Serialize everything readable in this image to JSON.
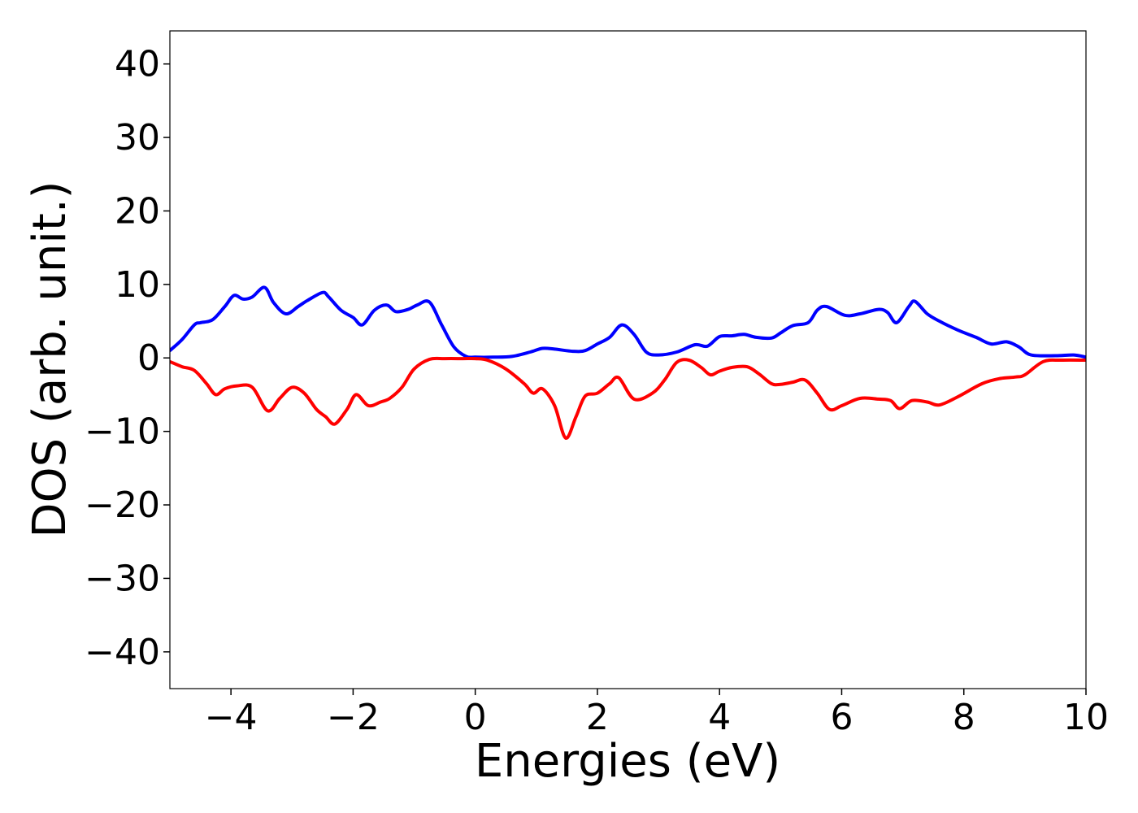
{
  "chart_data": {
    "type": "line",
    "title": "",
    "xlabel": "Energies (eV)",
    "ylabel": "DOS (arb. unit.)",
    "xlim": [
      -5,
      10
    ],
    "ylim": [
      -45,
      44.5
    ],
    "xticks": [
      -4,
      -2,
      0,
      2,
      4,
      6,
      8,
      10
    ],
    "xtick_labels": [
      "−4",
      "−2",
      "0",
      "2",
      "4",
      "6",
      "8",
      "10"
    ],
    "yticks": [
      40,
      30,
      20,
      10,
      0,
      -10,
      -20,
      -30,
      -40
    ],
    "ytick_labels": [
      "40",
      "30",
      "20",
      "10",
      "0",
      "−10",
      "−20",
      "−30",
      "−40"
    ],
    "grid": false,
    "series": [
      {
        "color": "#0000ff",
        "x": [
          -5.0,
          -4.8,
          -4.6,
          -4.5,
          -4.3,
          -4.1,
          -3.95,
          -3.8,
          -3.65,
          -3.45,
          -3.3,
          -3.1,
          -2.9,
          -2.75,
          -2.5,
          -2.4,
          -2.2,
          -2.0,
          -1.85,
          -1.65,
          -1.45,
          -1.3,
          -1.1,
          -0.95,
          -0.75,
          -0.55,
          -0.35,
          -0.15,
          0.0,
          0.3,
          0.6,
          0.9,
          1.1,
          1.3,
          1.6,
          1.8,
          2.0,
          2.2,
          2.4,
          2.6,
          2.8,
          3.0,
          3.3,
          3.6,
          3.8,
          4.0,
          4.2,
          4.4,
          4.6,
          4.85,
          5.0,
          5.2,
          5.45,
          5.6,
          5.75,
          6.05,
          6.3,
          6.6,
          6.75,
          6.9,
          7.1,
          7.2,
          7.4,
          7.6,
          7.9,
          8.2,
          8.45,
          8.7,
          8.9,
          9.1,
          9.5,
          9.8,
          10.0
        ],
        "y": [
          1.0,
          2.5,
          4.5,
          4.8,
          5.2,
          7.0,
          8.5,
          8.0,
          8.3,
          9.6,
          7.5,
          6.0,
          7.0,
          7.8,
          8.9,
          8.3,
          6.5,
          5.5,
          4.5,
          6.5,
          7.2,
          6.3,
          6.6,
          7.2,
          7.6,
          4.5,
          1.5,
          0.2,
          0.1,
          0.1,
          0.2,
          0.8,
          1.3,
          1.2,
          0.9,
          1.0,
          1.9,
          2.8,
          4.5,
          3.2,
          0.8,
          0.4,
          0.8,
          1.8,
          1.6,
          2.9,
          3.0,
          3.2,
          2.8,
          2.7,
          3.4,
          4.4,
          4.8,
          6.5,
          7.0,
          5.8,
          6.0,
          6.6,
          6.2,
          4.8,
          7.0,
          7.7,
          6.0,
          5.0,
          3.8,
          2.8,
          1.9,
          2.2,
          1.5,
          0.4,
          0.3,
          0.4,
          0.1
        ]
      },
      {
        "color": "#ff0000",
        "x": [
          -5.0,
          -4.8,
          -4.6,
          -4.4,
          -4.25,
          -4.1,
          -3.9,
          -3.65,
          -3.4,
          -3.2,
          -3.0,
          -2.8,
          -2.6,
          -2.45,
          -2.3,
          -2.1,
          -1.95,
          -1.75,
          -1.55,
          -1.4,
          -1.2,
          -1.0,
          -0.75,
          -0.5,
          -0.2,
          0.0,
          0.2,
          0.5,
          0.8,
          0.95,
          1.1,
          1.3,
          1.48,
          1.65,
          1.8,
          2.0,
          2.2,
          2.35,
          2.6,
          2.9,
          3.1,
          3.3,
          3.5,
          3.7,
          3.85,
          4.0,
          4.2,
          4.45,
          4.65,
          4.85,
          5.0,
          5.2,
          5.4,
          5.6,
          5.8,
          6.0,
          6.3,
          6.6,
          6.8,
          6.95,
          7.15,
          7.4,
          7.6,
          7.9,
          8.3,
          8.6,
          8.85,
          9.0,
          9.3,
          9.6,
          10.0
        ],
        "y": [
          -0.5,
          -1.2,
          -1.7,
          -3.5,
          -5.0,
          -4.2,
          -3.8,
          -4.0,
          -7.2,
          -5.5,
          -4.0,
          -4.8,
          -7.0,
          -8.0,
          -9.0,
          -7.0,
          -5.0,
          -6.5,
          -6.0,
          -5.5,
          -4.0,
          -1.5,
          -0.2,
          -0.1,
          -0.1,
          -0.1,
          -0.3,
          -1.5,
          -3.5,
          -4.8,
          -4.2,
          -6.5,
          -10.9,
          -8.0,
          -5.2,
          -4.8,
          -3.5,
          -2.7,
          -5.6,
          -4.8,
          -3.0,
          -0.6,
          -0.3,
          -1.3,
          -2.3,
          -1.8,
          -1.3,
          -1.2,
          -2.2,
          -3.5,
          -3.6,
          -3.3,
          -3.0,
          -4.8,
          -7.0,
          -6.5,
          -5.5,
          -5.6,
          -5.8,
          -6.9,
          -5.8,
          -6.0,
          -6.4,
          -5.3,
          -3.5,
          -2.8,
          -2.6,
          -2.3,
          -0.5,
          -0.3,
          -0.3
        ]
      }
    ]
  }
}
